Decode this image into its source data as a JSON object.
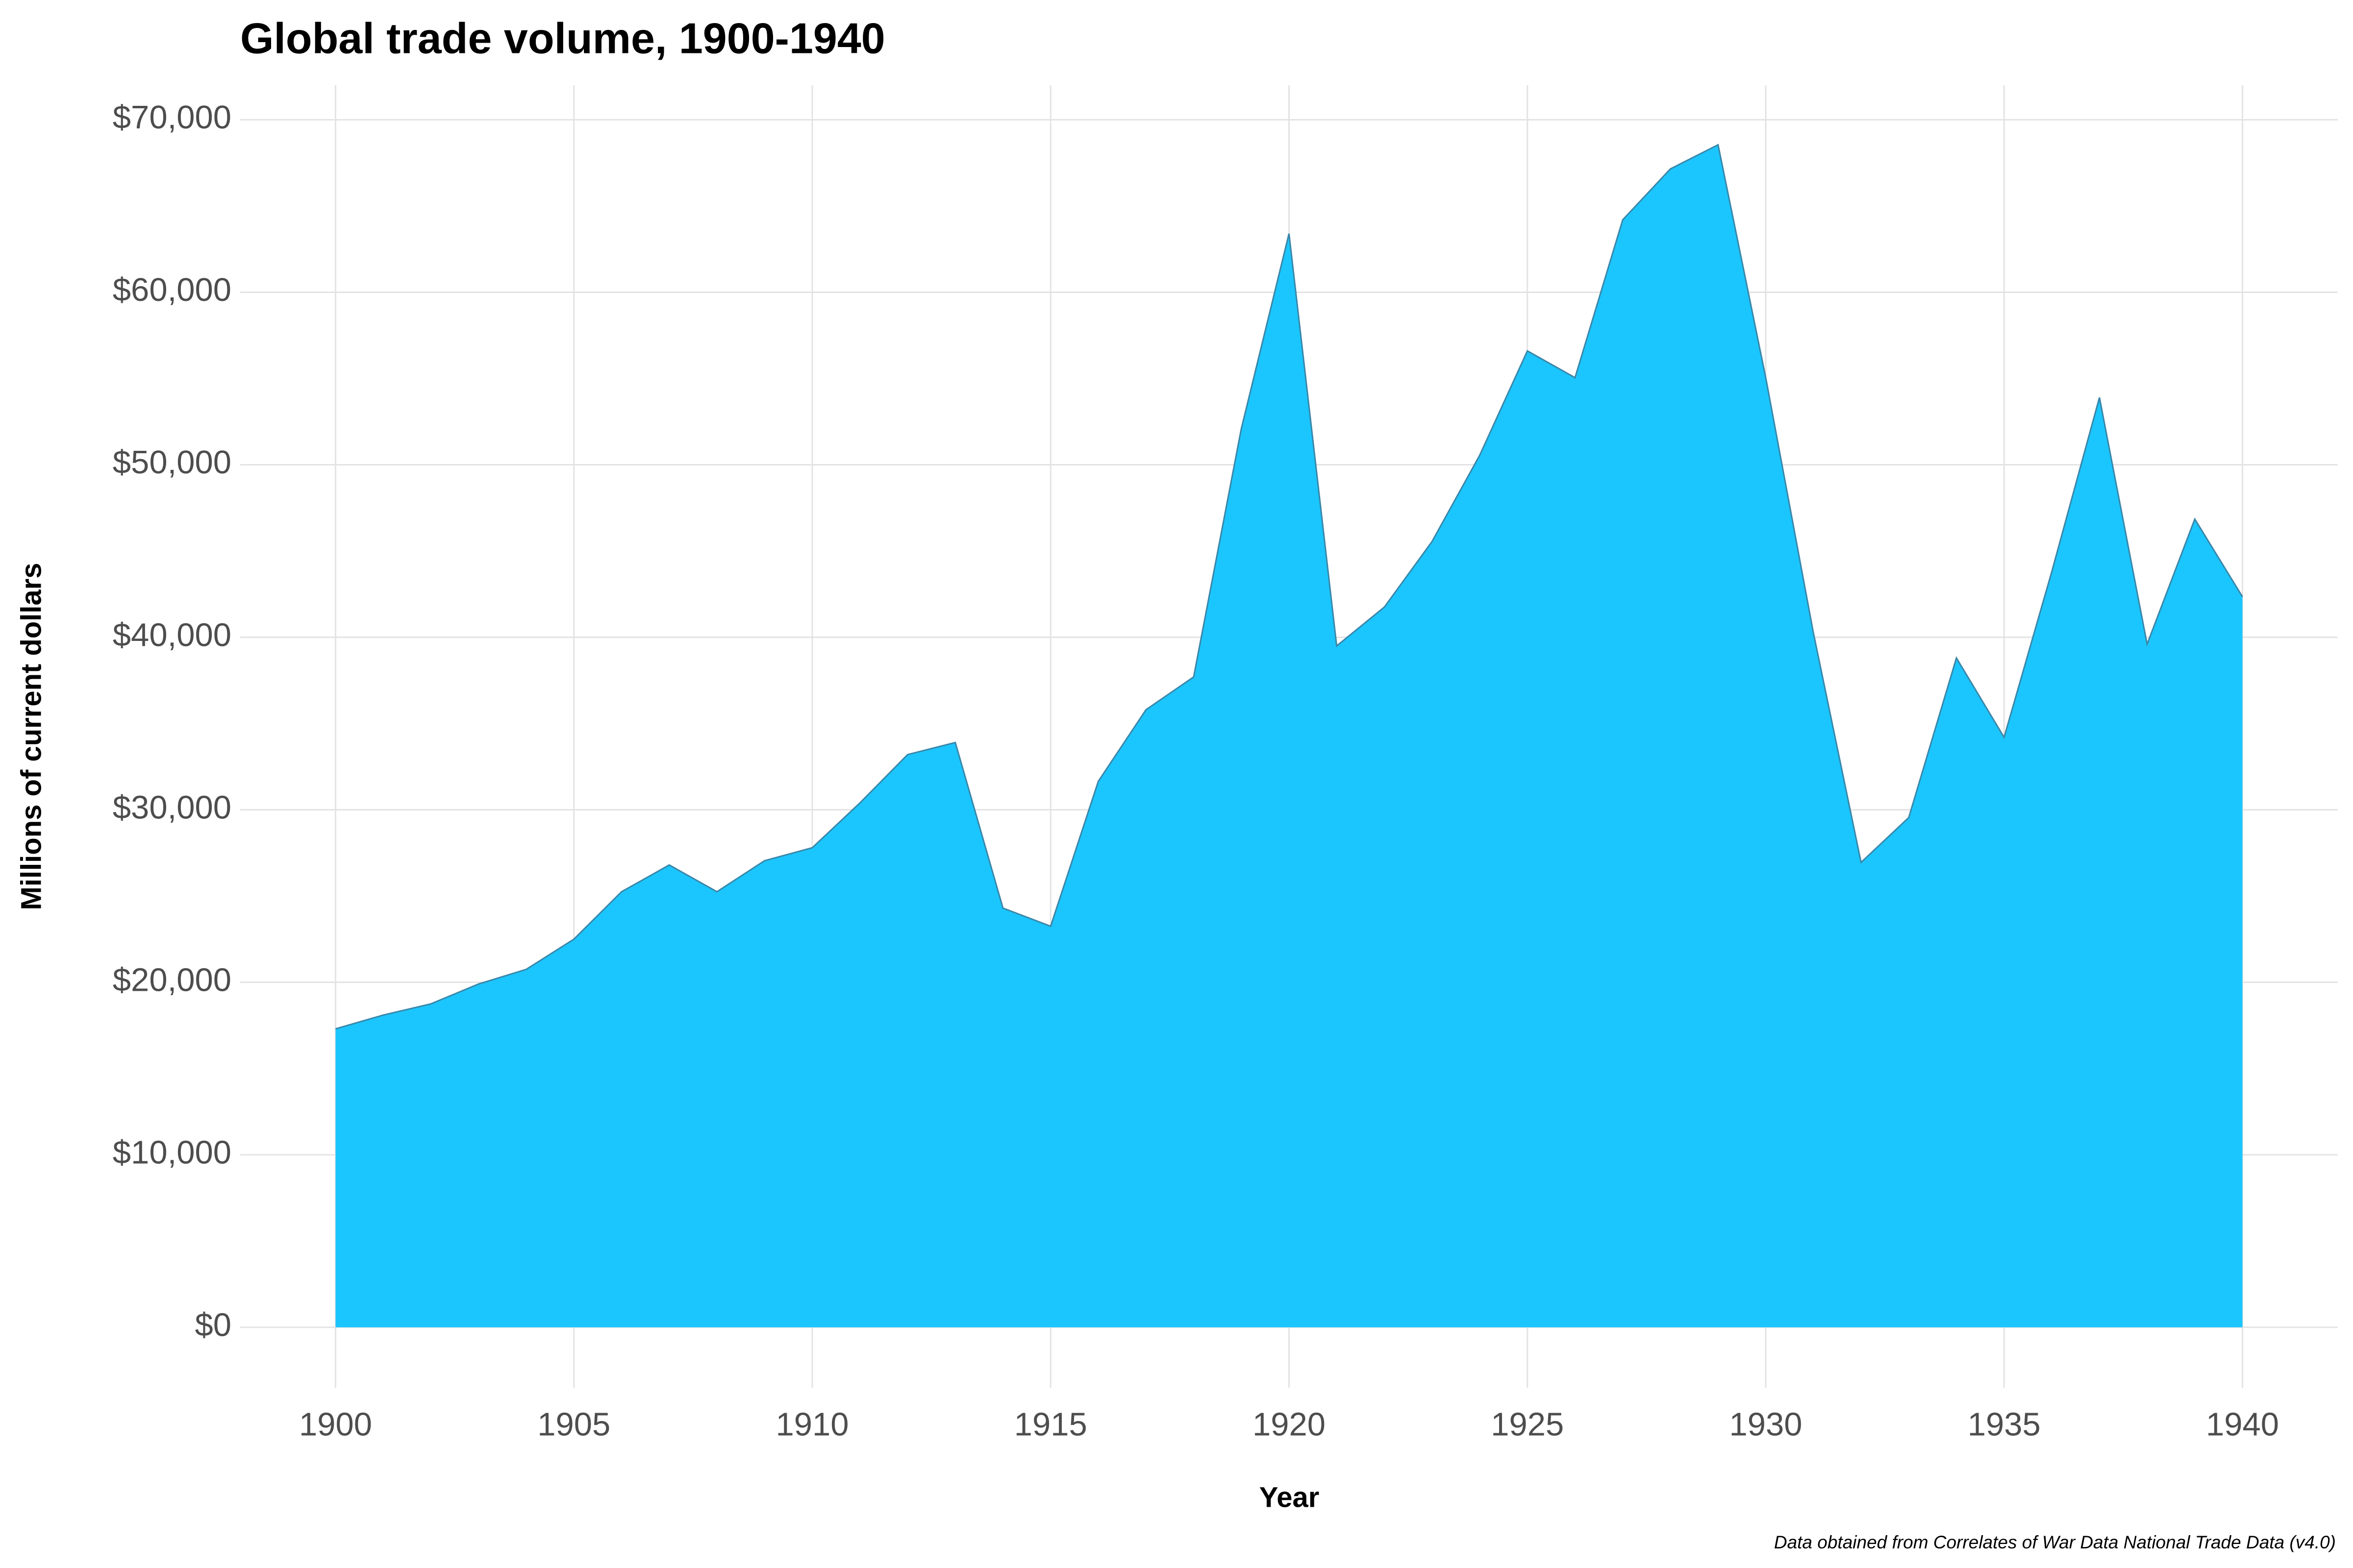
{
  "chart_data": {
    "type": "area",
    "title": "Global trade volume, 1900-1940",
    "xlabel": "Year",
    "ylabel": "Millions of current dollars",
    "caption": "Data obtained from Correlates of War Data National Trade Data (v4.0)",
    "x": [
      1900,
      1901,
      1902,
      1903,
      1904,
      1905,
      1906,
      1907,
      1908,
      1909,
      1910,
      1911,
      1912,
      1913,
      1914,
      1915,
      1916,
      1917,
      1918,
      1919,
      1920,
      1921,
      1922,
      1923,
      1924,
      1925,
      1926,
      1927,
      1928,
      1929,
      1930,
      1931,
      1932,
      1933,
      1934,
      1935,
      1936,
      1937,
      1938,
      1939,
      1940
    ],
    "values": [
      17300,
      18100,
      18750,
      19900,
      20750,
      22500,
      25250,
      26800,
      25250,
      27050,
      27800,
      30400,
      33200,
      33900,
      24300,
      23250,
      31650,
      35800,
      37700,
      52100,
      63400,
      39500,
      41750,
      45550,
      50550,
      56600,
      55050,
      64200,
      67150,
      68550,
      55050,
      40250,
      26950,
      29550,
      38800,
      34200,
      43800,
      53900,
      39600,
      46850,
      42350
    ],
    "color": "#1bc6fe",
    "line_color": "#3a86a8",
    "xlim": [
      1898,
      1942
    ],
    "xticks": [
      1900,
      1905,
      1910,
      1915,
      1920,
      1925,
      1930,
      1935,
      1940
    ],
    "ylim": [
      -3500,
      72000
    ],
    "yticks": [
      {
        "value": 0,
        "label": "$0"
      },
      {
        "value": 10000,
        "label": "$10,000"
      },
      {
        "value": 20000,
        "label": "$20,000"
      },
      {
        "value": 30000,
        "label": "$30,000"
      },
      {
        "value": 40000,
        "label": "$40,000"
      },
      {
        "value": 50000,
        "label": "$50,000"
      },
      {
        "value": 60000,
        "label": "$60,000"
      },
      {
        "value": 70000,
        "label": "$70,000"
      }
    ],
    "grid": true
  }
}
